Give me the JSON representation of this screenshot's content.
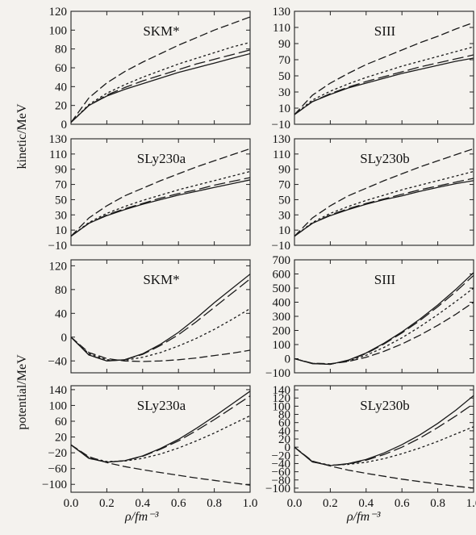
{
  "row_labels": {
    "kinetic": "kinetic/MeV",
    "potential": "potential/MeV"
  },
  "x_axis_label": "ρ/fm⁻³",
  "chart_data": [
    {
      "type": "line",
      "title": "SKM*",
      "group": "kinetic",
      "x": [
        0.0,
        0.1,
        0.2,
        0.3,
        0.4,
        0.5,
        0.6,
        0.7,
        0.8,
        0.9,
        1.0
      ],
      "xlim": [
        0,
        1.0
      ],
      "ylim": [
        0,
        120
      ],
      "yticks": [
        0,
        20,
        40,
        60,
        80,
        100,
        120
      ],
      "xticks": [
        "0.0",
        "0.2",
        "0.4",
        "0.6",
        "0.8",
        "1.0"
      ],
      "series": [
        {
          "style": "solid",
          "values": [
            2,
            20,
            30,
            37,
            43,
            49,
            55,
            60,
            65,
            70,
            75
          ]
        },
        {
          "style": "long-dash",
          "values": [
            2,
            20,
            31,
            39,
            46,
            52,
            58,
            64,
            69,
            74,
            79
          ]
        },
        {
          "style": "short-dash",
          "values": [
            2,
            21,
            33,
            42,
            50,
            57,
            64,
            70,
            76,
            82,
            87
          ]
        },
        {
          "style": "dash-dot",
          "values": [
            2,
            28,
            44,
            56,
            66,
            75,
            84,
            92,
            100,
            107,
            114
          ]
        }
      ]
    },
    {
      "type": "line",
      "title": "SIII",
      "group": "kinetic",
      "x": [
        0.0,
        0.1,
        0.2,
        0.3,
        0.4,
        0.5,
        0.6,
        0.7,
        0.8,
        0.9,
        1.0
      ],
      "xlim": [
        0,
        1.0
      ],
      "ylim": [
        -10,
        130
      ],
      "yticks": [
        -10,
        10,
        30,
        50,
        70,
        90,
        110,
        130
      ],
      "xticks": [
        "0.0",
        "0.2",
        "0.4",
        "0.6",
        "0.8",
        "1.0"
      ],
      "series": [
        {
          "style": "solid",
          "values": [
            2,
            18,
            27,
            35,
            41,
            47,
            53,
            58,
            63,
            68,
            72
          ]
        },
        {
          "style": "long-dash",
          "values": [
            2,
            18,
            28,
            36,
            43,
            49,
            55,
            61,
            66,
            71,
            76
          ]
        },
        {
          "style": "short-dash",
          "values": [
            2,
            20,
            31,
            40,
            48,
            55,
            62,
            68,
            74,
            80,
            86
          ]
        },
        {
          "style": "dash-dot",
          "values": [
            2,
            26,
            41,
            53,
            64,
            73,
            82,
            91,
            99,
            108,
            116
          ]
        }
      ]
    },
    {
      "type": "line",
      "title": "SLy230a",
      "group": "kinetic",
      "x": [
        0.0,
        0.1,
        0.2,
        0.3,
        0.4,
        0.5,
        0.6,
        0.7,
        0.8,
        0.9,
        1.0
      ],
      "xlim": [
        0,
        1.0
      ],
      "ylim": [
        -10,
        130
      ],
      "yticks": [
        -10,
        10,
        30,
        50,
        70,
        90,
        110,
        130
      ],
      "xticks": [
        "0.0",
        "0.2",
        "0.4",
        "0.6",
        "0.8",
        "1.0"
      ],
      "series": [
        {
          "style": "solid",
          "values": [
            2,
            19,
            29,
            37,
            44,
            50,
            56,
            61,
            66,
            71,
            76
          ]
        },
        {
          "style": "long-dash",
          "values": [
            2,
            19,
            30,
            38,
            45,
            52,
            58,
            63,
            69,
            74,
            79
          ]
        },
        {
          "style": "short-dash",
          "values": [
            2,
            20,
            32,
            41,
            49,
            56,
            63,
            69,
            75,
            81,
            87
          ]
        },
        {
          "style": "dash-dot",
          "values": [
            2,
            26,
            42,
            55,
            65,
            75,
            84,
            93,
            101,
            109,
            117
          ]
        }
      ]
    },
    {
      "type": "line",
      "title": "SLy230b",
      "group": "kinetic",
      "x": [
        0.0,
        0.1,
        0.2,
        0.3,
        0.4,
        0.5,
        0.6,
        0.7,
        0.8,
        0.9,
        1.0
      ],
      "xlim": [
        0,
        1.0
      ],
      "ylim": [
        -10,
        130
      ],
      "yticks": [
        -10,
        10,
        30,
        50,
        70,
        90,
        110,
        130
      ],
      "xticks": [
        "0.0",
        "0.2",
        "0.4",
        "0.6",
        "0.8",
        "1.0"
      ],
      "series": [
        {
          "style": "solid",
          "values": [
            2,
            19,
            29,
            37,
            44,
            50,
            55,
            61,
            66,
            71,
            75
          ]
        },
        {
          "style": "long-dash",
          "values": [
            2,
            19,
            30,
            38,
            45,
            51,
            57,
            63,
            68,
            73,
            78
          ]
        },
        {
          "style": "short-dash",
          "values": [
            2,
            20,
            32,
            41,
            49,
            56,
            63,
            69,
            75,
            81,
            87
          ]
        },
        {
          "style": "dash-dot",
          "values": [
            2,
            26,
            42,
            55,
            65,
            75,
            84,
            93,
            101,
            109,
            117
          ]
        }
      ]
    },
    {
      "type": "line",
      "title": "SKM*",
      "group": "potential",
      "x": [
        0.0,
        0.1,
        0.2,
        0.3,
        0.4,
        0.5,
        0.6,
        0.7,
        0.8,
        0.9,
        1.0
      ],
      "xlim": [
        0,
        1.0
      ],
      "ylim": [
        -60,
        130
      ],
      "yticks": [
        -40,
        0,
        40,
        80,
        120
      ],
      "xticks": [
        "0.0",
        "0.2",
        "0.4",
        "0.6",
        "0.8",
        "1.0"
      ],
      "series": [
        {
          "style": "solid",
          "values": [
            0,
            -30,
            -40,
            -38,
            -28,
            -12,
            8,
            32,
            58,
            82,
            106
          ]
        },
        {
          "style": "long-dash",
          "values": [
            0,
            -30,
            -40,
            -38,
            -29,
            -14,
            4,
            26,
            50,
            74,
            98
          ]
        },
        {
          "style": "short-dash",
          "values": [
            0,
            -28,
            -38,
            -39,
            -34,
            -26,
            -15,
            -2,
            13,
            30,
            48
          ]
        },
        {
          "style": "dash-dot",
          "values": [
            0,
            -26,
            -36,
            -40,
            -41,
            -40,
            -38,
            -35,
            -31,
            -27,
            -22
          ]
        }
      ]
    },
    {
      "type": "line",
      "title": "SIII",
      "group": "potential",
      "x": [
        0.0,
        0.1,
        0.2,
        0.3,
        0.4,
        0.5,
        0.6,
        0.7,
        0.8,
        0.9,
        1.0
      ],
      "xlim": [
        0,
        1.0
      ],
      "ylim": [
        -100,
        700
      ],
      "yticks": [
        -100,
        0,
        100,
        200,
        300,
        400,
        500,
        600,
        700
      ],
      "xticks": [
        "0.0",
        "0.2",
        "0.4",
        "0.6",
        "0.8",
        "1.0"
      ],
      "series": [
        {
          "style": "solid",
          "values": [
            0,
            -35,
            -40,
            -10,
            40,
            110,
            190,
            280,
            380,
            490,
            610
          ]
        },
        {
          "style": "long-dash",
          "values": [
            0,
            -35,
            -40,
            -12,
            36,
            104,
            182,
            270,
            368,
            474,
            590
          ]
        },
        {
          "style": "short-dash",
          "values": [
            0,
            -33,
            -38,
            -16,
            24,
            80,
            148,
            226,
            312,
            404,
            500
          ]
        },
        {
          "style": "dash-dot",
          "values": [
            0,
            -32,
            -36,
            -20,
            10,
            52,
            104,
            166,
            236,
            314,
            400
          ]
        }
      ]
    },
    {
      "type": "line",
      "title": "SLy230a",
      "group": "potential",
      "x": [
        0.0,
        0.1,
        0.2,
        0.3,
        0.4,
        0.5,
        0.6,
        0.7,
        0.8,
        0.9,
        1.0
      ],
      "xlim": [
        0,
        1.0
      ],
      "ylim": [
        -120,
        150
      ],
      "yticks": [
        -100,
        -60,
        -20,
        20,
        60,
        100,
        140
      ],
      "xticks": [
        "0.0",
        "0.2",
        "0.4",
        "0.6",
        "0.8",
        "1.0"
      ],
      "series": [
        {
          "style": "solid",
          "values": [
            0,
            -34,
            -44,
            -40,
            -28,
            -9,
            14,
            42,
            72,
            104,
            136
          ]
        },
        {
          "style": "long-dash",
          "values": [
            0,
            -34,
            -44,
            -40,
            -29,
            -11,
            10,
            36,
            64,
            94,
            124
          ]
        },
        {
          "style": "short-dash",
          "values": [
            0,
            -32,
            -42,
            -41,
            -34,
            -23,
            -8,
            10,
            30,
            52,
            74
          ]
        },
        {
          "style": "dash-dot",
          "values": [
            0,
            -30,
            -45,
            -55,
            -63,
            -70,
            -77,
            -84,
            -90,
            -96,
            -102
          ]
        }
      ]
    },
    {
      "type": "line",
      "title": "SLy230b",
      "group": "potential",
      "x": [
        0.0,
        0.1,
        0.2,
        0.3,
        0.4,
        0.5,
        0.6,
        0.7,
        0.8,
        0.9,
        1.0
      ],
      "xlim": [
        0,
        1.0
      ],
      "ylim": [
        -110,
        150
      ],
      "yticks": [
        -100,
        -80,
        -60,
        -40,
        -20,
        0,
        20,
        40,
        60,
        80,
        100,
        120,
        140
      ],
      "xticks": [
        "0.0",
        "0.2",
        "0.4",
        "0.6",
        "0.8",
        "1.0"
      ],
      "series": [
        {
          "style": "solid",
          "values": [
            0,
            -36,
            -45,
            -40,
            -30,
            -14,
            6,
            30,
            58,
            90,
            126
          ]
        },
        {
          "style": "long-dash",
          "values": [
            0,
            -36,
            -45,
            -41,
            -32,
            -18,
            0,
            22,
            48,
            76,
            106
          ]
        },
        {
          "style": "short-dash",
          "values": [
            0,
            -35,
            -44,
            -42,
            -37,
            -28,
            -16,
            -2,
            14,
            32,
            50
          ]
        },
        {
          "style": "dash-dot",
          "values": [
            0,
            -34,
            -46,
            -56,
            -64,
            -71,
            -78,
            -84,
            -90,
            -95,
            -100
          ]
        }
      ]
    }
  ]
}
